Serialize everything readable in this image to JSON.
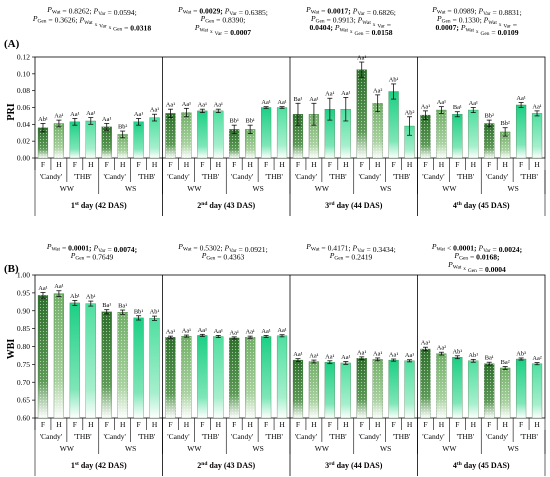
{
  "chart_data": [
    {
      "type": "bar",
      "panel": "(A)",
      "ylabel": "PRI",
      "ylim": [
        0,
        0.12
      ],
      "yticks": [
        "0.00",
        "0.02",
        "0.04",
        "0.06",
        "0.08",
        "0.10",
        "0.12"
      ],
      "bars": [
        {
          "day": 1,
          "group": "WW",
          "variety": "'Candy'",
          "trt": "F",
          "value": 0.036,
          "err": 0.005,
          "label": "Ab¹"
        },
        {
          "day": 1,
          "group": "WW",
          "variety": "'Candy'",
          "trt": "H",
          "value": 0.041,
          "err": 0.004,
          "label": "Aa¹"
        },
        {
          "day": 1,
          "group": "WW",
          "variety": "'THB'",
          "trt": "F",
          "value": 0.043,
          "err": 0.004,
          "label": "Aa¹"
        },
        {
          "day": 1,
          "group": "WW",
          "variety": "'THB'",
          "trt": "H",
          "value": 0.044,
          "err": 0.004,
          "label": "Aa¹"
        },
        {
          "day": 1,
          "group": "WS",
          "variety": "'Candy'",
          "trt": "F",
          "value": 0.037,
          "err": 0.004,
          "label": "Aa¹"
        },
        {
          "day": 1,
          "group": "WS",
          "variety": "'Candy'",
          "trt": "H",
          "value": 0.028,
          "err": 0.004,
          "label": "Bb²"
        },
        {
          "day": 1,
          "group": "WS",
          "variety": "'THB'",
          "trt": "F",
          "value": 0.043,
          "err": 0.004,
          "label": "Aa¹"
        },
        {
          "day": 1,
          "group": "WS",
          "variety": "'THB'",
          "trt": "H",
          "value": 0.048,
          "err": 0.004,
          "label": "Aa¹"
        },
        {
          "day": 2,
          "group": "WW",
          "variety": "'Candy'",
          "trt": "F",
          "value": 0.053,
          "err": 0.005,
          "label": "Aa¹"
        },
        {
          "day": 2,
          "group": "WW",
          "variety": "'Candy'",
          "trt": "H",
          "value": 0.054,
          "err": 0.005,
          "label": "Aa¹"
        },
        {
          "day": 2,
          "group": "WW",
          "variety": "'THB'",
          "trt": "F",
          "value": 0.056,
          "err": 0.002,
          "label": "Aa¹"
        },
        {
          "day": 2,
          "group": "WW",
          "variety": "'THB'",
          "trt": "H",
          "value": 0.056,
          "err": 0.002,
          "label": "Aa¹"
        },
        {
          "day": 2,
          "group": "WS",
          "variety": "'Candy'",
          "trt": "F",
          "value": 0.034,
          "err": 0.005,
          "label": "Bb¹"
        },
        {
          "day": 2,
          "group": "WS",
          "variety": "'Candy'",
          "trt": "H",
          "value": 0.034,
          "err": 0.005,
          "label": "Bb¹"
        },
        {
          "day": 2,
          "group": "WS",
          "variety": "'THB'",
          "trt": "F",
          "value": 0.06,
          "err": 0.001,
          "label": "Aa¹"
        },
        {
          "day": 2,
          "group": "WS",
          "variety": "'THB'",
          "trt": "H",
          "value": 0.06,
          "err": 0.001,
          "label": "Aa¹"
        },
        {
          "day": 3,
          "group": "WW",
          "variety": "'Candy'",
          "trt": "F",
          "value": 0.052,
          "err": 0.013,
          "label": "Ba¹"
        },
        {
          "day": 3,
          "group": "WW",
          "variety": "'Candy'",
          "trt": "H",
          "value": 0.052,
          "err": 0.013,
          "label": "Aa¹"
        },
        {
          "day": 3,
          "group": "WW",
          "variety": "'THB'",
          "trt": "F",
          "value": 0.058,
          "err": 0.013,
          "label": "Aa¹"
        },
        {
          "day": 3,
          "group": "WW",
          "variety": "'THB'",
          "trt": "H",
          "value": 0.058,
          "err": 0.014,
          "label": "Aa¹"
        },
        {
          "day": 3,
          "group": "WS",
          "variety": "'Candy'",
          "trt": "F",
          "value": 0.105,
          "err": 0.009,
          "label": "Aa¹"
        },
        {
          "day": 3,
          "group": "WS",
          "variety": "'Candy'",
          "trt": "H",
          "value": 0.065,
          "err": 0.01,
          "label": "Aa²"
        },
        {
          "day": 3,
          "group": "WS",
          "variety": "'THB'",
          "trt": "F",
          "value": 0.079,
          "err": 0.009,
          "label": "Ab¹"
        },
        {
          "day": 3,
          "group": "WS",
          "variety": "'THB'",
          "trt": "H",
          "value": 0.038,
          "err": 0.011,
          "label": "Ab²"
        },
        {
          "day": 4,
          "group": "WW",
          "variety": "'Candy'",
          "trt": "F",
          "value": 0.051,
          "err": 0.005,
          "label": "Aa¹"
        },
        {
          "day": 4,
          "group": "WW",
          "variety": "'Candy'",
          "trt": "H",
          "value": 0.057,
          "err": 0.004,
          "label": "Aa¹"
        },
        {
          "day": 4,
          "group": "WW",
          "variety": "'THB'",
          "trt": "F",
          "value": 0.052,
          "err": 0.003,
          "label": "Ba¹"
        },
        {
          "day": 4,
          "group": "WW",
          "variety": "'THB'",
          "trt": "H",
          "value": 0.057,
          "err": 0.003,
          "label": "Aa¹"
        },
        {
          "day": 4,
          "group": "WS",
          "variety": "'Candy'",
          "trt": "F",
          "value": 0.041,
          "err": 0.004,
          "label": "Bb²"
        },
        {
          "day": 4,
          "group": "WS",
          "variety": "'Candy'",
          "trt": "H",
          "value": 0.031,
          "err": 0.005,
          "label": "Bb²"
        },
        {
          "day": 4,
          "group": "WS",
          "variety": "'THB'",
          "trt": "F",
          "value": 0.063,
          "err": 0.003,
          "label": "Aa¹"
        },
        {
          "day": 4,
          "group": "WS",
          "variety": "'THB'",
          "trt": "H",
          "value": 0.053,
          "err": 0.003,
          "label": "Aa¹"
        }
      ]
    },
    {
      "type": "bar",
      "panel": "(B)",
      "ylabel": "WBI",
      "ylim": [
        0.6,
        1.0
      ],
      "yticks": [
        "0.60",
        "0.65",
        "0.70",
        "0.75",
        "0.80",
        "0.85",
        "0.90",
        "0.95",
        "1.00"
      ],
      "bars": [
        {
          "day": 1,
          "group": "WW",
          "variety": "'Candy'",
          "trt": "F",
          "value": 0.943,
          "err": 0.008,
          "label": "Aa¹"
        },
        {
          "day": 1,
          "group": "WW",
          "variety": "'Candy'",
          "trt": "H",
          "value": 0.948,
          "err": 0.008,
          "label": "Aa¹"
        },
        {
          "day": 1,
          "group": "WW",
          "variety": "'THB'",
          "trt": "F",
          "value": 0.922,
          "err": 0.007,
          "label": "Ab¹"
        },
        {
          "day": 1,
          "group": "WW",
          "variety": "'THB'",
          "trt": "H",
          "value": 0.92,
          "err": 0.007,
          "label": "Ab¹"
        },
        {
          "day": 1,
          "group": "WS",
          "variety": "'Candy'",
          "trt": "F",
          "value": 0.897,
          "err": 0.006,
          "label": "Ba¹"
        },
        {
          "day": 1,
          "group": "WS",
          "variety": "'Candy'",
          "trt": "H",
          "value": 0.896,
          "err": 0.006,
          "label": "Ba¹"
        },
        {
          "day": 1,
          "group": "WS",
          "variety": "'THB'",
          "trt": "F",
          "value": 0.88,
          "err": 0.006,
          "label": "Bb¹"
        },
        {
          "day": 1,
          "group": "WS",
          "variety": "'THB'",
          "trt": "H",
          "value": 0.879,
          "err": 0.006,
          "label": "Ab¹"
        },
        {
          "day": 2,
          "group": "WW",
          "variety": "'Candy'",
          "trt": "F",
          "value": 0.826,
          "err": 0.003,
          "label": "Aa¹"
        },
        {
          "day": 2,
          "group": "WW",
          "variety": "'Candy'",
          "trt": "H",
          "value": 0.829,
          "err": 0.003,
          "label": "Aa¹"
        },
        {
          "day": 2,
          "group": "WW",
          "variety": "'THB'",
          "trt": "F",
          "value": 0.831,
          "err": 0.003,
          "label": "Aa¹"
        },
        {
          "day": 2,
          "group": "WW",
          "variety": "'THB'",
          "trt": "H",
          "value": 0.828,
          "err": 0.003,
          "label": "Aa¹"
        },
        {
          "day": 2,
          "group": "WS",
          "variety": "'Candy'",
          "trt": "F",
          "value": 0.824,
          "err": 0.003,
          "label": "Aa¹"
        },
        {
          "day": 2,
          "group": "WS",
          "variety": "'Candy'",
          "trt": "H",
          "value": 0.826,
          "err": 0.003,
          "label": "Aa¹"
        },
        {
          "day": 2,
          "group": "WS",
          "variety": "'THB'",
          "trt": "F",
          "value": 0.828,
          "err": 0.003,
          "label": "Aa¹"
        },
        {
          "day": 2,
          "group": "WS",
          "variety": "'THB'",
          "trt": "H",
          "value": 0.83,
          "err": 0.003,
          "label": "Aa¹"
        },
        {
          "day": 3,
          "group": "WW",
          "variety": "'Candy'",
          "trt": "F",
          "value": 0.762,
          "err": 0.004,
          "label": "Aa¹"
        },
        {
          "day": 3,
          "group": "WW",
          "variety": "'Candy'",
          "trt": "H",
          "value": 0.758,
          "err": 0.004,
          "label": "Aa¹"
        },
        {
          "day": 3,
          "group": "WW",
          "variety": "'THB'",
          "trt": "F",
          "value": 0.756,
          "err": 0.004,
          "label": "Aa¹"
        },
        {
          "day": 3,
          "group": "WW",
          "variety": "'THB'",
          "trt": "H",
          "value": 0.754,
          "err": 0.004,
          "label": "Aa¹"
        },
        {
          "day": 3,
          "group": "WS",
          "variety": "'Candy'",
          "trt": "F",
          "value": 0.767,
          "err": 0.004,
          "label": "Aa¹"
        },
        {
          "day": 3,
          "group": "WS",
          "variety": "'Candy'",
          "trt": "H",
          "value": 0.764,
          "err": 0.004,
          "label": "Aa¹"
        },
        {
          "day": 3,
          "group": "WS",
          "variety": "'THB'",
          "trt": "F",
          "value": 0.762,
          "err": 0.003,
          "label": "Aa¹"
        },
        {
          "day": 3,
          "group": "WS",
          "variety": "'THB'",
          "trt": "H",
          "value": 0.76,
          "err": 0.003,
          "label": "Aa¹"
        },
        {
          "day": 4,
          "group": "WW",
          "variety": "'Candy'",
          "trt": "F",
          "value": 0.793,
          "err": 0.005,
          "label": "Aa¹"
        },
        {
          "day": 4,
          "group": "WW",
          "variety": "'Candy'",
          "trt": "H",
          "value": 0.78,
          "err": 0.004,
          "label": "Aa²"
        },
        {
          "day": 4,
          "group": "WW",
          "variety": "'THB'",
          "trt": "F",
          "value": 0.77,
          "err": 0.004,
          "label": "Ab¹"
        },
        {
          "day": 4,
          "group": "WW",
          "variety": "'THB'",
          "trt": "H",
          "value": 0.76,
          "err": 0.004,
          "label": "Ab¹"
        },
        {
          "day": 4,
          "group": "WS",
          "variety": "'Candy'",
          "trt": "F",
          "value": 0.752,
          "err": 0.004,
          "label": "Ba¹"
        },
        {
          "day": 4,
          "group": "WS",
          "variety": "'Candy'",
          "trt": "H",
          "value": 0.74,
          "err": 0.004,
          "label": "Ba²"
        },
        {
          "day": 4,
          "group": "WS",
          "variety": "'THB'",
          "trt": "F",
          "value": 0.765,
          "err": 0.003,
          "label": "Ab³"
        },
        {
          "day": 4,
          "group": "WS",
          "variety": "'THB'",
          "trt": "H",
          "value": 0.752,
          "err": 0.003,
          "label": "Aa²"
        }
      ]
    }
  ],
  "stats_A": [
    [
      "P_Wat = 0.8262; P_Var = 0.0594;",
      "P_Gen = 0.3626; P_Wat x Var x Gen = 0.0318"
    ],
    [
      "P_Wat = 0.0029; P_Var = 0.6385;",
      "P_Gen = 0.8390;",
      "P_Wat x Var = 0.0007"
    ],
    [
      "P_Wat = 0.0017; P_Var = 0.6826;",
      "P_Gen = 0.9913; P_Wat x Var =",
      "0.0404; P_Wat x Gen = 0.0158"
    ],
    [
      "P_Wat = 0.0989; P_Var = 0.8831;",
      "P_Gen = 0.1330; P_Wat x Var =",
      "0.0007; P_Wat x Gen = 0.0109"
    ]
  ],
  "stats_B": [
    [
      "P_Wat = 0.0001; P_Var = 0.0074;",
      "P_Gen = 0.7649"
    ],
    [
      "P_Wat = 0.5302; P_Var = 0.0921;",
      "P_Gen = 0.4363"
    ],
    [
      "P_Wat = 0.4171; P_Var = 0.3434;",
      "P_Gen = 0.2419"
    ],
    [
      "P_Wat < 0.0001; P_Var = 0.0024;",
      "P_Gen = 0.0168;",
      "P_Wat x Gen = 0.0004"
    ]
  ],
  "day_labels": [
    "1st day (42 DAS)",
    "2nd day (43 DAS)",
    "3rd day (44 DAS)",
    "4th day (45 DAS)"
  ],
  "variety_labels": [
    "'Candy'",
    "'THB'"
  ],
  "group_labels": [
    "WW",
    "WS"
  ],
  "treatment_labels": [
    "F",
    "H"
  ],
  "colors": {
    "candy_F": "#2f7a2c",
    "candy_H": "#86bd7a",
    "thb_F": "#22d38a",
    "thb_H": "#62e3aa"
  }
}
